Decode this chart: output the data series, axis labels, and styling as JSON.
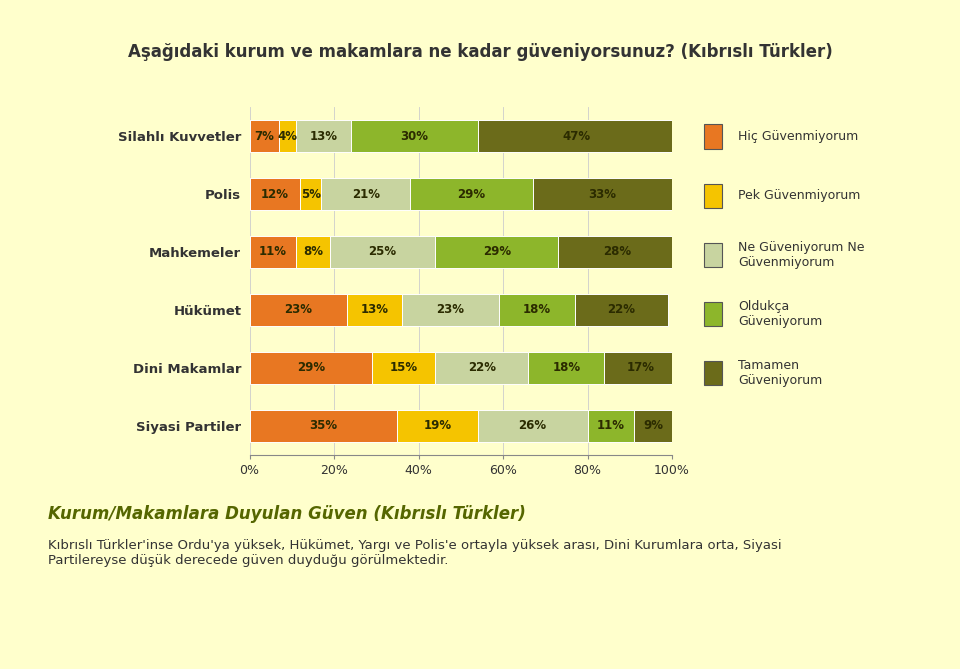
{
  "title": "Aşağıdaki kurum ve makamlara ne kadar güveniyorsunuz? (Kıbrıslı Türkler)",
  "categories": [
    "Silahlı Kuvvetler",
    "Polis",
    "Mahkemeler",
    "Hükümet",
    "Dini Makamlar",
    "Siyasi Partiler"
  ],
  "legend_labels": [
    "Hiç Güvenmiyorum",
    "Pek Güvenmiyorum",
    "Ne Güveniyorum Ne\nGüvenmiyorum",
    "Oldukça\nGüveniyorum",
    "Tamamen\nGüveniyorum"
  ],
  "colors": [
    "#E87722",
    "#F5C400",
    "#C8D4A0",
    "#8DB62B",
    "#6B6B1A"
  ],
  "data": [
    [
      7,
      4,
      13,
      30,
      47
    ],
    [
      12,
      5,
      21,
      29,
      33
    ],
    [
      11,
      8,
      25,
      29,
      28
    ],
    [
      23,
      13,
      23,
      18,
      22
    ],
    [
      29,
      15,
      22,
      18,
      17
    ],
    [
      35,
      19,
      26,
      11,
      9
    ]
  ],
  "bar_labels": [
    [
      "7%",
      "4%",
      "13%",
      "30%",
      "47%"
    ],
    [
      "12%",
      "5%",
      "21%",
      "29%",
      "33%"
    ],
    [
      "11%",
      "8%",
      "25%",
      "29%",
      "28%"
    ],
    [
      "23%",
      "13%",
      "23%",
      "18%",
      "22%"
    ],
    [
      "29%",
      "15%",
      "22%",
      "18%",
      "17%"
    ],
    [
      "35%",
      "19%",
      "26%",
      "11%",
      "9%"
    ]
  ],
  "background_color": "#FFFFCC",
  "chart_bg_color": "#FFFFCC",
  "xlim": [
    0,
    100
  ],
  "xtick_labels": [
    "0%",
    "20%",
    "40%",
    "60%",
    "80%",
    "100%"
  ],
  "xtick_values": [
    0,
    20,
    40,
    60,
    80,
    100
  ],
  "title_fontsize": 12,
  "label_fontsize": 8.5,
  "category_fontsize": 9.5,
  "legend_fontsize": 9,
  "subtitle_text": "Kurum/Makamlara Duyulan Güven (Kıbrıslı Türkler)",
  "body_text": "Kıbrıslı Türkler'inse Ordu'ya yüksek, Hükümet, Yargı ve Polis'e ortayla yüksek arası, Dini Kurumlara orta, Siyasi\nPartilereyse düşük derecede güven duyduğu görülmektedir.",
  "stripe_colors": [
    "#8DB62B",
    "#E87722",
    "#F5C400"
  ]
}
